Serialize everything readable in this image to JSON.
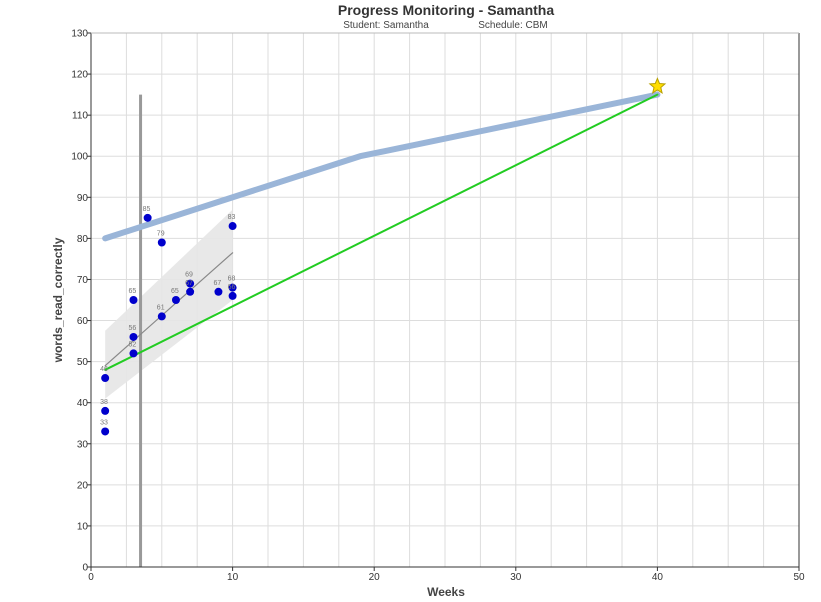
{
  "chart_data": {
    "type": "scatter",
    "title": "Progress Monitoring - Samantha",
    "subtitle_student": "Student: Samantha",
    "subtitle_schedule": "Schedule: CBM",
    "xlabel": "Weeks",
    "ylabel": "words_read_correctly",
    "xlim": [
      0,
      50
    ],
    "ylim": [
      0,
      130
    ],
    "x_ticks": [
      0,
      10,
      20,
      30,
      40,
      50
    ],
    "y_ticks": [
      0,
      10,
      20,
      30,
      40,
      50,
      60,
      70,
      80,
      90,
      100,
      110,
      120,
      130
    ],
    "grid": true,
    "points": [
      {
        "x": 1,
        "y": 46,
        "label": "46"
      },
      {
        "x": 1,
        "y": 38,
        "label": "38"
      },
      {
        "x": 1,
        "y": 33,
        "label": "33"
      },
      {
        "x": 3,
        "y": 65,
        "label": "65"
      },
      {
        "x": 3,
        "y": 56,
        "label": "56"
      },
      {
        "x": 3,
        "y": 52,
        "label": "52"
      },
      {
        "x": 4,
        "y": 85,
        "label": "85"
      },
      {
        "x": 5,
        "y": 79,
        "label": "79"
      },
      {
        "x": 5,
        "y": 61,
        "label": "61"
      },
      {
        "x": 6,
        "y": 65,
        "label": "65"
      },
      {
        "x": 7,
        "y": 69,
        "label": "69"
      },
      {
        "x": 7,
        "y": 67,
        "label": "67"
      },
      {
        "x": 9,
        "y": 67,
        "label": "67"
      },
      {
        "x": 10,
        "y": 83,
        "label": "83"
      },
      {
        "x": 10,
        "y": 68,
        "label": "68"
      },
      {
        "x": 10,
        "y": 66,
        "label": "66"
      }
    ],
    "benchmark_line": {
      "x": [
        1,
        19,
        40
      ],
      "y": [
        80,
        100,
        115
      ],
      "color": "#9ab5d8"
    },
    "goal_line": {
      "x": [
        1,
        40
      ],
      "y": [
        48,
        115
      ],
      "color": "#22cc22"
    },
    "trend_line": {
      "x": [
        1,
        10
      ],
      "y": [
        49,
        76.5
      ],
      "color": "#888888"
    },
    "confidence_band": {
      "x": [
        1,
        10
      ],
      "upper": [
        57.5,
        87
      ],
      "lower": [
        41,
        65
      ],
      "color": "#e6e6e6"
    },
    "phase_line": {
      "x": 3.5,
      "y_top": 115,
      "color": "#999999"
    },
    "goal_marker": {
      "x": 40,
      "y": 117,
      "shape": "star-icon",
      "color": "#ffdd00"
    },
    "point_color": "#0000cc"
  }
}
